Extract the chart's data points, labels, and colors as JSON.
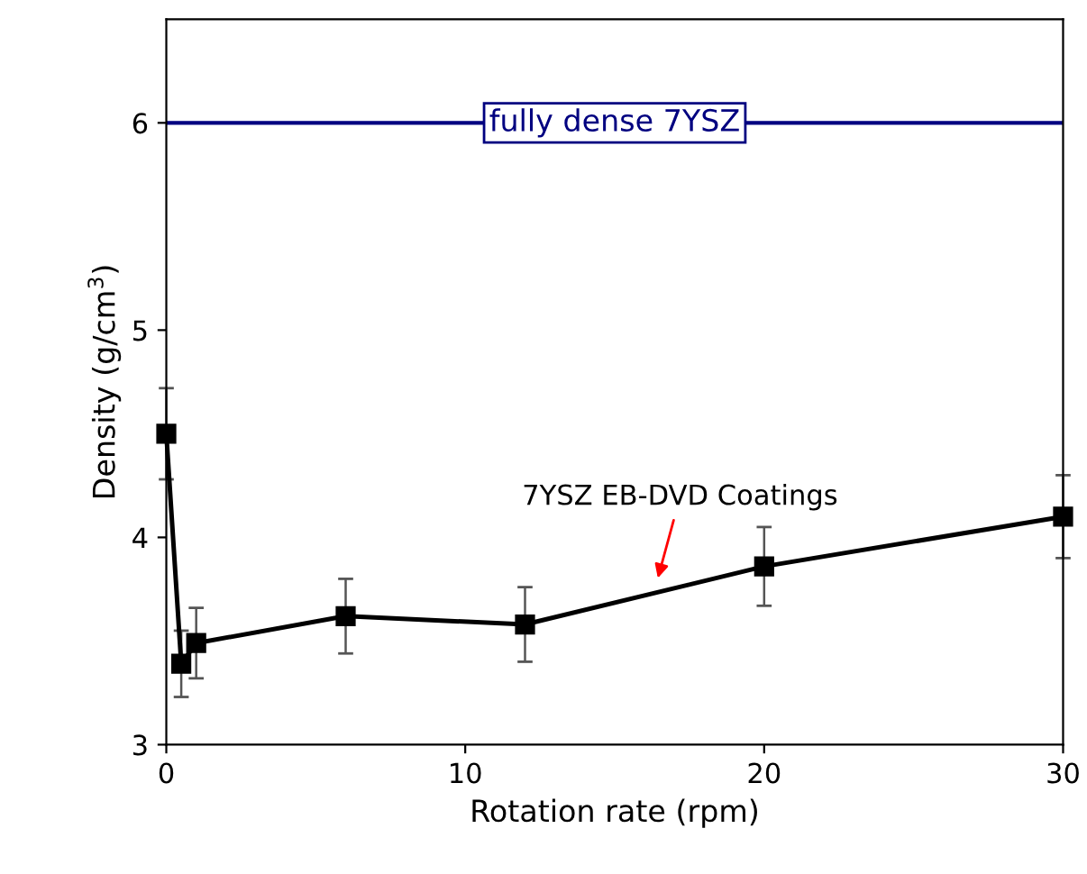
{
  "chart_data": {
    "type": "line",
    "xlabel": "Rotation rate (rpm)",
    "ylabel": "Density (g/cm$^{3}$)",
    "x": [
      0,
      0.5,
      1,
      6,
      12,
      20,
      30
    ],
    "series": [
      {
        "color": "#000000",
        "values": [
          4.5,
          3.39,
          3.49,
          3.62,
          3.58,
          3.86,
          4.1
        ],
        "errors": [
          0.22,
          0.16,
          0.17,
          0.18,
          0.18,
          0.19,
          0.2
        ]
      }
    ],
    "marker": "square",
    "line_style": "solid",
    "xlim": [
      0,
      30
    ],
    "xticks": [
      0,
      10,
      20,
      30
    ],
    "ylim": [
      3,
      6.5
    ],
    "yticks": [
      3,
      4,
      5,
      6
    ],
    "ref_lines": [
      {
        "axis": "y",
        "value": 6,
        "label": "fully dense 7YSZ",
        "color": "#000080"
      }
    ],
    "annotations": [
      {
        "text": "7YSZ EB-DVD Coatings",
        "x": 16.4,
        "y": 3.78
      }
    ],
    "grid": false,
    "legend": false
  }
}
